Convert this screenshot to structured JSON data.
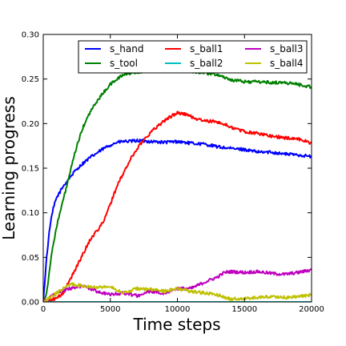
{
  "chart_data": {
    "type": "line",
    "xlabel": "Time steps",
    "ylabel": "Learning progress",
    "xlim": [
      0,
      20000
    ],
    "ylim": [
      0,
      0.3
    ],
    "xticks": [
      0,
      5000,
      10000,
      15000,
      20000
    ],
    "xtick_labels": [
      "0",
      "5000",
      "10000",
      "15000",
      "20000"
    ],
    "yticks": [
      0,
      0.05,
      0.1,
      0.15,
      0.2,
      0.25,
      0.3
    ],
    "ytick_labels": [
      "0.00",
      "0.05",
      "0.10",
      "0.15",
      "0.20",
      "0.25",
      "0.30"
    ],
    "grid": false,
    "legend_position": "top-right",
    "series": [
      {
        "name": "s_hand",
        "color": "#0000ff",
        "x": [
          0,
          250,
          500,
          750,
          1000,
          1500,
          2000,
          2500,
          3000,
          3500,
          4000,
          4500,
          5000,
          5500,
          6000,
          6500,
          7000,
          8000,
          9000,
          10000,
          11000,
          12000,
          13000,
          14000,
          15000,
          16000,
          17000,
          18000,
          19000,
          20000
        ],
        "y": [
          0.0,
          0.05,
          0.085,
          0.105,
          0.117,
          0.13,
          0.14,
          0.149,
          0.156,
          0.162,
          0.167,
          0.172,
          0.176,
          0.179,
          0.18,
          0.18,
          0.181,
          0.18,
          0.179,
          0.18,
          0.178,
          0.177,
          0.174,
          0.172,
          0.171,
          0.168,
          0.168,
          0.166,
          0.165,
          0.163
        ]
      },
      {
        "name": "s_tool",
        "color": "#008000",
        "x": [
          0,
          250,
          500,
          750,
          1000,
          1500,
          2000,
          2500,
          3000,
          3500,
          4000,
          4500,
          5000,
          5500,
          6000,
          7000,
          8000,
          9000,
          10000,
          11000,
          12000,
          13000,
          14000,
          15000,
          16000,
          17000,
          18000,
          19000,
          20000
        ],
        "y": [
          0.0,
          0.01,
          0.04,
          0.065,
          0.085,
          0.115,
          0.145,
          0.175,
          0.197,
          0.213,
          0.225,
          0.235,
          0.244,
          0.25,
          0.255,
          0.258,
          0.259,
          0.259,
          0.261,
          0.259,
          0.257,
          0.255,
          0.249,
          0.247,
          0.247,
          0.246,
          0.246,
          0.244,
          0.241
        ]
      },
      {
        "name": "s_ball1",
        "color": "#ff0000",
        "x": [
          0,
          500,
          1000,
          1500,
          2000,
          2500,
          3000,
          3500,
          4000,
          4500,
          5000,
          5500,
          6000,
          6500,
          7000,
          7500,
          8000,
          8500,
          9000,
          9500,
          10000,
          10500,
          11000,
          11500,
          12000,
          13000,
          14000,
          15000,
          16000,
          17000,
          18000,
          19000,
          20000
        ],
        "y": [
          0.0,
          0.002,
          0.004,
          0.01,
          0.025,
          0.04,
          0.055,
          0.07,
          0.08,
          0.09,
          0.11,
          0.13,
          0.145,
          0.16,
          0.172,
          0.182,
          0.19,
          0.197,
          0.203,
          0.208,
          0.212,
          0.211,
          0.208,
          0.205,
          0.203,
          0.202,
          0.196,
          0.191,
          0.189,
          0.186,
          0.184,
          0.183,
          0.178
        ]
      },
      {
        "name": "s_ball2",
        "color": "#00bfbf",
        "x": [
          0,
          20000
        ],
        "y": [
          0.0,
          0.0
        ]
      },
      {
        "name": "s_ball3",
        "color": "#bf00bf",
        "x": [
          0,
          1000,
          2000,
          3000,
          4000,
          5000,
          6000,
          7000,
          8000,
          9000,
          10000,
          11000,
          12000,
          13000,
          13500,
          14000,
          15000,
          16000,
          17000,
          18000,
          19000,
          20000
        ],
        "y": [
          0.0,
          0.01,
          0.015,
          0.018,
          0.012,
          0.008,
          0.01,
          0.007,
          0.012,
          0.01,
          0.015,
          0.015,
          0.022,
          0.028,
          0.033,
          0.034,
          0.033,
          0.034,
          0.032,
          0.031,
          0.033,
          0.036
        ]
      },
      {
        "name": "s_ball4",
        "color": "#bfbf00",
        "x": [
          0,
          1000,
          2000,
          3000,
          4000,
          5000,
          6000,
          7000,
          8000,
          9000,
          10000,
          11000,
          12000,
          13000,
          14000,
          15000,
          16000,
          17000,
          18000,
          19000,
          20000
        ],
        "y": [
          0.0,
          0.01,
          0.02,
          0.018,
          0.017,
          0.017,
          0.01,
          0.015,
          0.014,
          0.012,
          0.015,
          0.012,
          0.01,
          0.008,
          0.003,
          0.004,
          0.005,
          0.006,
          0.005,
          0.006,
          0.008
        ]
      }
    ]
  }
}
